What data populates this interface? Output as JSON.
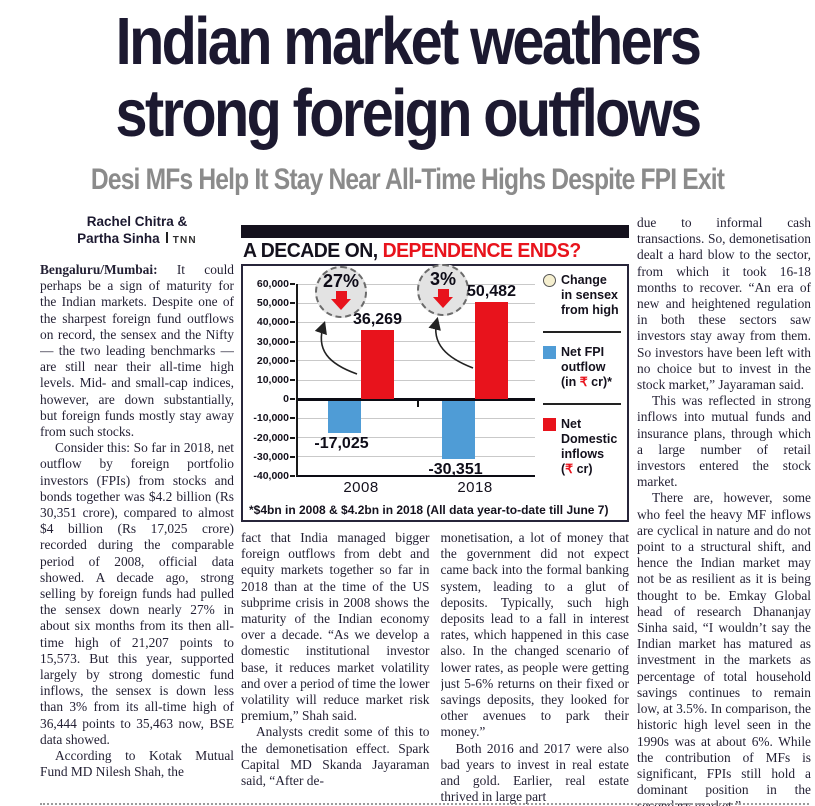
{
  "masthead": {
    "headline_line1": "Indian market weathers",
    "headline_line2": "strong foreign outflows",
    "subheadline": "Desi MFs Help It Stay Near All-Time Highs Despite FPI Exit"
  },
  "byline": {
    "line1": "Rachel Chitra &",
    "line2_name": "Partha Sinha",
    "agency": "TNN"
  },
  "article": {
    "col1": [
      {
        "lead": "Bengaluru/Mumbai:",
        "text": "It could perhaps be a sign of maturity for the Indian markets. Despite one of the sharpest foreign fund outflows on record, the sensex and the Nifty — the two leading benchmarks — are still near their all-time high levels. Mid- and small-cap indices, however, are down substantially, but foreign funds mostly stay away from such stocks."
      },
      {
        "text": "Consider this: So far in 2018, net outflow by foreign portfolio investors (FPIs) from stocks and bonds together was $4.2 billion (Rs 30,351 crore), compared to almost $4 billion (Rs 17,025 crore) recorded during the comparable period of 2008, official data showed. A decade ago, strong selling by foreign funds had pulled the sensex down nearly 27% in about six months from its then all-time high of 21,207 points to 15,573. But this year, supported largely by strong domestic fund inflows, the sensex is down less than 3% from its all-time high of 36,444 points to 35,463 now, BSE data showed."
      },
      {
        "text": "According to Kotak Mutual Fund MD Nilesh Shah, the"
      }
    ],
    "col2": [
      {
        "text": "fact that India managed bigger foreign outflows from debt and equity markets together so far in 2018 than at the time of the US subprime crisis in 2008 shows the maturity of the Indian economy over a decade. “As we develop a domestic institutional investor base, it reduces market volatility and over a period of time the lower volatility will reduce market risk premium,” Shah said."
      },
      {
        "text": "Analysts credit some of this to the demonetisation effect. Spark Capital MD Skanda Jayaraman said, “After de-"
      }
    ],
    "col3": [
      {
        "text": "monetisation, a lot of money that the government did not expect came back into the formal banking system, leading to a glut of deposits. Typically, such high deposits lead to a fall in interest rates, which happened in this case also. In the changed scenario of lower rates, as people were getting just 5-6% returns on their fixed or savings deposits, they looked for other avenues to park their money.”"
      },
      {
        "text": "Both 2016 and 2017 were also bad years to invest in real estate and gold. Earlier, real estate thrived in large part"
      }
    ],
    "col4": [
      {
        "text": "due to informal cash transactions. So, demonetisation dealt a hard blow to the sector, from which it took 16-18 months to recover. “An era of new and heightened regulation in both these sectors saw investors stay away from them. So investors have been left with no choice but to invest in the stock market,” Jayaraman said."
      },
      {
        "text": "This was reflected in strong inflows into mutual funds and insurance plans, through which a large number of retail investors entered the stock market."
      },
      {
        "text": "There are, however, some who feel the heavy MF inflows are cyclical in nature and do not point to a structural shift, and hence the Indian market may not be as resilient as it is being thought to be. Emkay Global head of research Dhananjay Sinha said, “I wouldn’t say the Indian market has matured as investment in the markets as percentage of total household savings continues to remain low, at 3.5%. In comparison, the historic high level seen in the 1990s was at about 6%. While the contribution of MFs is significant, FPIs still hold a dominant position in the secondary market.”"
      }
    ]
  },
  "chart_data": {
    "type": "bar",
    "title_black": "A DECADE ON,",
    "title_red": "DEPENDENCE ENDS?",
    "categories": [
      "2008",
      "2018"
    ],
    "series": [
      {
        "name": "Net FPI outflow (in ₹ cr)*",
        "color": "#4f9cd6",
        "values": [
          -17025,
          -30351
        ],
        "labels": [
          "-17,025",
          "-30,351"
        ]
      },
      {
        "name": "Net Domestic inflows (₹ cr)",
        "color": "#e8131c",
        "values": [
          36269,
          50482
        ],
        "labels": [
          "36,269",
          "50,482"
        ]
      }
    ],
    "sensex_change_from_high": [
      "27%",
      "3%"
    ],
    "ylim": [
      -40000,
      60000
    ],
    "ytick_step": 10000,
    "yticks": [
      "60,000",
      "50,000",
      "40,000",
      "30,000",
      "20,000",
      "10,000",
      "0",
      "-10,000",
      "-20,000",
      "-30,000",
      "-40,000"
    ],
    "grid": "horizontal",
    "legend_position": "right",
    "legend": [
      {
        "shape": "circle",
        "color": "#f5efcf",
        "label": "Change\nin sensex\nfrom high"
      },
      {
        "shape": "square",
        "color": "#4f9cd6",
        "label": "Net FPI\noutflow\n(in ₹ cr)*"
      },
      {
        "shape": "square",
        "color": "#e8131c",
        "label": "Net\nDomestic\ninflows\n(₹ cr)"
      }
    ],
    "footnote": "*$4bn in 2008 & $4.2bn in 2018 (All data year-to-date till June 7)"
  },
  "colors": {
    "accent_red": "#e8131c",
    "bar_blue": "#4f9cd6",
    "ink": "#1c1930",
    "subhead_gray": "#8b8b8b",
    "circle_gray": "#e3e3e3",
    "legend_circle_cream": "#f5efcf"
  }
}
